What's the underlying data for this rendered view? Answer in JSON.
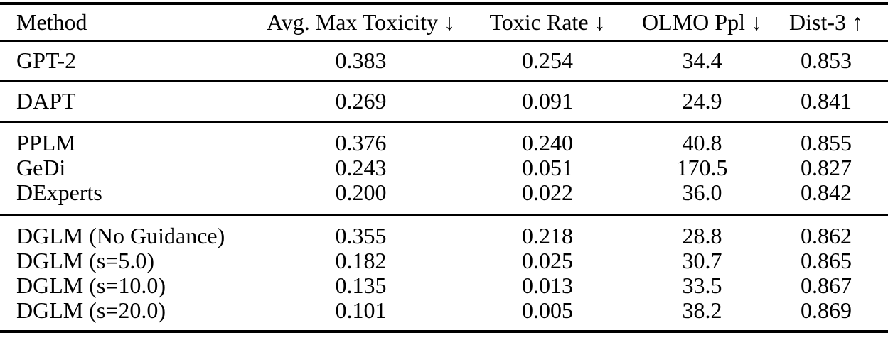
{
  "colors": {
    "text": "#000000",
    "background": "#ffffff",
    "rule": "#000000"
  },
  "table": {
    "columns": [
      {
        "label": "Method",
        "arrow": ""
      },
      {
        "label": "Avg. Max Toxicity",
        "arrow": "↓"
      },
      {
        "label": "Toxic Rate",
        "arrow": "↓"
      },
      {
        "label": "OLMO Ppl",
        "arrow": "↓"
      },
      {
        "label": "Dist-3",
        "arrow": "↑"
      }
    ],
    "groups": [
      {
        "rows": [
          {
            "method": "GPT-2",
            "values": [
              "0.383",
              "0.254",
              "34.4",
              "0.853"
            ]
          }
        ]
      },
      {
        "rows": [
          {
            "method": "DAPT",
            "values": [
              "0.269",
              "0.091",
              "24.9",
              "0.841"
            ]
          }
        ]
      },
      {
        "rows": [
          {
            "method": "PPLM",
            "values": [
              "0.376",
              "0.240",
              "40.8",
              "0.855"
            ]
          },
          {
            "method": "GeDi",
            "values": [
              "0.243",
              "0.051",
              "170.5",
              "0.827"
            ]
          },
          {
            "method": "DExperts",
            "values": [
              "0.200",
              "0.022",
              "36.0",
              "0.842"
            ]
          }
        ]
      },
      {
        "rows": [
          {
            "method": "DGLM (No Guidance)",
            "values": [
              "0.355",
              "0.218",
              "28.8",
              "0.862"
            ]
          },
          {
            "method": "DGLM (s=5.0)",
            "values": [
              "0.182",
              "0.025",
              "30.7",
              "0.865"
            ]
          },
          {
            "method": "DGLM (s=10.0)",
            "values": [
              "0.135",
              "0.013",
              "33.5",
              "0.867"
            ]
          },
          {
            "method": "DGLM (s=20.0)",
            "values": [
              "0.101",
              "0.005",
              "38.2",
              "0.869"
            ]
          }
        ]
      }
    ]
  }
}
